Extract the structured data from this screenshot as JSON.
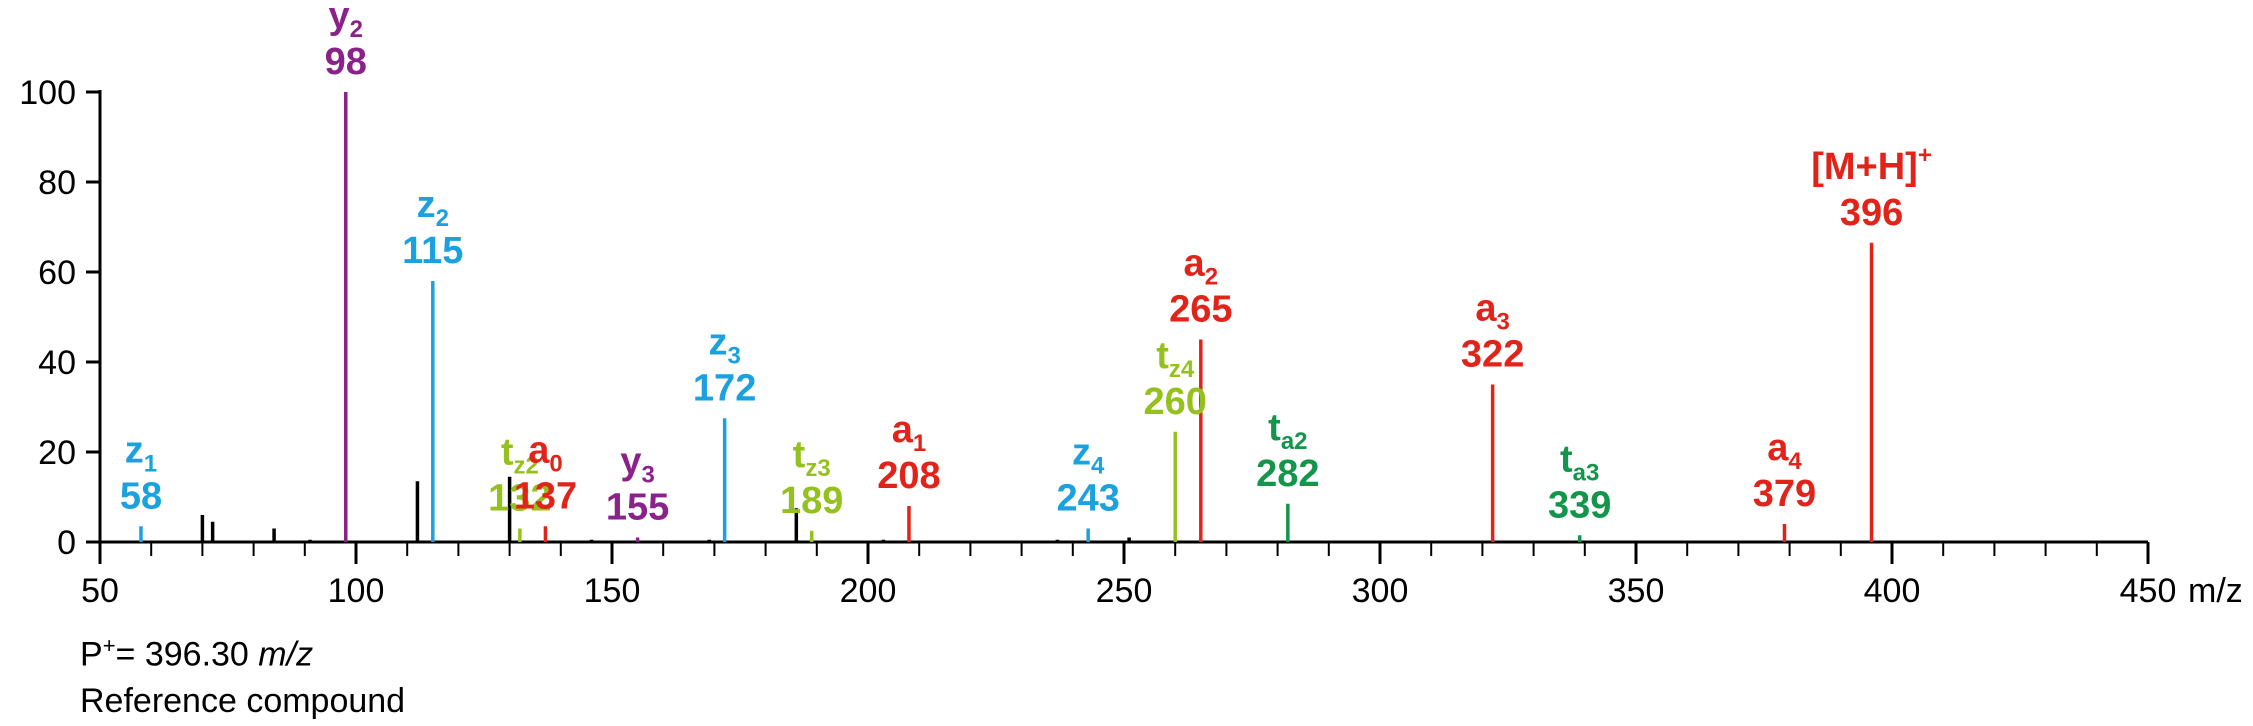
{
  "chart_data": {
    "type": "bar",
    "title": "",
    "xlabel": "m/z",
    "ylabel": "",
    "xlim": [
      50,
      450
    ],
    "ylim": [
      0,
      100
    ],
    "x_major_ticks": [
      50,
      100,
      150,
      200,
      250,
      300,
      350,
      400,
      450
    ],
    "y_ticks": [
      0,
      20,
      40,
      60,
      80,
      100
    ],
    "grid": false,
    "colors": {
      "a": "#e2231a",
      "y": "#8b2289",
      "z": "#1ba1dd",
      "tz": "#95c11f",
      "ta": "#13954b",
      "unassigned": "#000000"
    },
    "labeled_peaks": [
      {
        "ion": "z",
        "sub": "1",
        "sup": "",
        "mz": 58,
        "intensity": 3.5,
        "color": "#1ba1dd"
      },
      {
        "ion": "y",
        "sub": "2",
        "sup": "",
        "mz": 98,
        "intensity": 100,
        "color": "#8b2289"
      },
      {
        "ion": "z",
        "sub": "2",
        "sup": "",
        "mz": 115,
        "intensity": 58,
        "color": "#1ba1dd"
      },
      {
        "ion": "t",
        "sub": "z2",
        "sup": "",
        "mz": 132,
        "intensity": 3,
        "color": "#95c11f"
      },
      {
        "ion": "a",
        "sub": "0",
        "sup": "",
        "mz": 137,
        "intensity": 3.5,
        "color": "#e2231a"
      },
      {
        "ion": "y",
        "sub": "3",
        "sup": "",
        "mz": 155,
        "intensity": 1,
        "color": "#8b2289"
      },
      {
        "ion": "z",
        "sub": "3",
        "sup": "",
        "mz": 172,
        "intensity": 27.5,
        "color": "#1ba1dd"
      },
      {
        "ion": "t",
        "sub": "z3",
        "sup": "",
        "mz": 189,
        "intensity": 2.5,
        "color": "#95c11f"
      },
      {
        "ion": "a",
        "sub": "1",
        "sup": "",
        "mz": 208,
        "intensity": 8,
        "color": "#e2231a"
      },
      {
        "ion": "z",
        "sub": "4",
        "sup": "",
        "mz": 243,
        "intensity": 3,
        "color": "#1ba1dd"
      },
      {
        "ion": "t",
        "sub": "z4",
        "sup": "",
        "mz": 260,
        "intensity": 24.5,
        "color": "#95c11f"
      },
      {
        "ion": "a",
        "sub": "2",
        "sup": "",
        "mz": 265,
        "intensity": 45,
        "color": "#e2231a"
      },
      {
        "ion": "t",
        "sub": "a2",
        "sup": "",
        "mz": 282,
        "intensity": 8.5,
        "color": "#13954b"
      },
      {
        "ion": "a",
        "sub": "3",
        "sup": "",
        "mz": 322,
        "intensity": 35,
        "color": "#e2231a"
      },
      {
        "ion": "t",
        "sub": "a3",
        "sup": "",
        "mz": 339,
        "intensity": 1.5,
        "color": "#13954b"
      },
      {
        "ion": "a",
        "sub": "4",
        "sup": "",
        "mz": 379,
        "intensity": 4,
        "color": "#e2231a"
      },
      {
        "ion": "[M+H]",
        "sub": "",
        "sup": "+",
        "mz": 396,
        "intensity": 66.5,
        "color": "#e2231a"
      }
    ],
    "unlabeled_peaks": [
      {
        "mz": 70,
        "intensity": 6
      },
      {
        "mz": 72,
        "intensity": 4.5
      },
      {
        "mz": 84,
        "intensity": 3
      },
      {
        "mz": 91,
        "intensity": 0.5
      },
      {
        "mz": 112,
        "intensity": 13.5
      },
      {
        "mz": 130,
        "intensity": 14.5
      },
      {
        "mz": 146,
        "intensity": 0.5
      },
      {
        "mz": 169,
        "intensity": 0.5
      },
      {
        "mz": 186,
        "intensity": 7.5
      },
      {
        "mz": 203,
        "intensity": 0.5
      },
      {
        "mz": 237,
        "intensity": 0.5
      },
      {
        "mz": 251,
        "intensity": 1
      }
    ]
  },
  "caption": {
    "precursor_prefix": "P",
    "precursor_sup": "+",
    "precursor_value": "= 396.30 ",
    "precursor_unit": "m/z",
    "compound": "Reference compound"
  }
}
